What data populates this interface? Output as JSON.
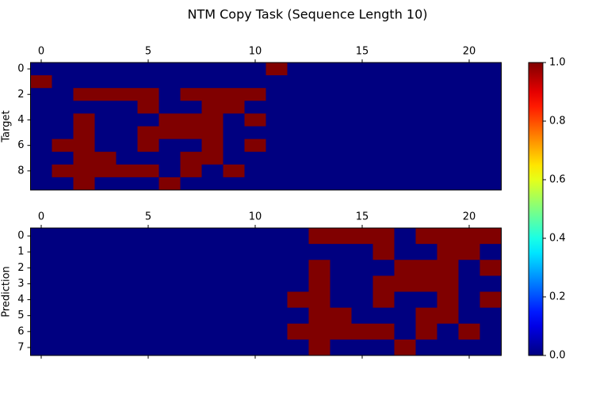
{
  "chart_data": {
    "type": "heatmap",
    "title": "NTM Copy Task (Sequence Length 10)",
    "colormap": "jet",
    "colorbar": {
      "lim": [
        0,
        1
      ],
      "ticks": [
        {
          "value": 0,
          "label": "0.0"
        },
        0.2,
        0.4,
        0.6,
        0.8,
        {
          "value": 1,
          "label": "1.0"
        }
      ]
    },
    "panels": [
      {
        "ylabel": "Target",
        "xlim": [
          -0.5,
          21.5
        ],
        "ylim": [
          9.5,
          -0.5
        ],
        "xticks": [
          0,
          5,
          10,
          15,
          20
        ],
        "yticks": [
          0,
          2,
          4,
          6,
          8
        ],
        "values": [
          [
            0,
            0,
            0,
            0,
            0,
            0,
            0,
            0,
            0,
            0,
            0,
            1,
            0,
            0,
            0,
            0,
            0,
            0,
            0,
            0,
            0,
            0
          ],
          [
            1,
            0,
            0,
            0,
            0,
            0,
            0,
            0,
            0,
            0,
            0,
            0,
            0,
            0,
            0,
            0,
            0,
            0,
            0,
            0,
            0,
            0
          ],
          [
            0,
            0,
            1,
            1,
            1,
            1,
            0,
            1,
            1,
            1,
            1,
            0,
            0,
            0,
            0,
            0,
            0,
            0,
            0,
            0,
            0,
            0
          ],
          [
            0,
            0,
            0,
            0,
            0,
            1,
            0,
            0,
            1,
            1,
            0,
            0,
            0,
            0,
            0,
            0,
            0,
            0,
            0,
            0,
            0,
            0
          ],
          [
            0,
            0,
            1,
            0,
            0,
            0,
            1,
            1,
            1,
            0,
            1,
            0,
            0,
            0,
            0,
            0,
            0,
            0,
            0,
            0,
            0,
            0
          ],
          [
            0,
            0,
            1,
            0,
            0,
            1,
            1,
            1,
            1,
            0,
            0,
            0,
            0,
            0,
            0,
            0,
            0,
            0,
            0,
            0,
            0,
            0
          ],
          [
            0,
            1,
            1,
            0,
            0,
            1,
            0,
            0,
            1,
            0,
            1,
            0,
            0,
            0,
            0,
            0,
            0,
            0,
            0,
            0,
            0,
            0
          ],
          [
            0,
            0,
            1,
            1,
            0,
            0,
            0,
            1,
            1,
            0,
            0,
            0,
            0,
            0,
            0,
            0,
            0,
            0,
            0,
            0,
            0,
            0
          ],
          [
            0,
            1,
            1,
            1,
            1,
            1,
            0,
            1,
            0,
            1,
            0,
            0,
            0,
            0,
            0,
            0,
            0,
            0,
            0,
            0,
            0,
            0
          ],
          [
            0,
            0,
            1,
            0,
            0,
            0,
            1,
            0,
            0,
            0,
            0,
            0,
            0,
            0,
            0,
            0,
            0,
            0,
            0,
            0,
            0,
            0
          ]
        ]
      },
      {
        "ylabel": "Prediction",
        "xlim": [
          -0.5,
          21.5
        ],
        "ylim": [
          7.5,
          -0.5
        ],
        "xticks": [
          0,
          5,
          10,
          15,
          20
        ],
        "yticks": [
          0,
          1,
          2,
          3,
          4,
          5,
          6,
          7
        ],
        "values": [
          [
            0,
            0,
            0,
            0,
            0,
            0,
            0,
            0,
            0,
            0,
            0,
            0,
            0,
            1,
            1,
            1,
            1,
            0,
            1,
            1,
            1,
            1
          ],
          [
            0,
            0,
            0,
            0,
            0,
            0,
            0,
            0,
            0,
            0,
            0,
            0,
            0,
            0,
            0,
            0,
            1,
            0,
            0,
            1,
            1,
            0
          ],
          [
            0,
            0,
            0,
            0,
            0,
            0,
            0,
            0,
            0,
            0,
            0,
            0,
            0,
            1,
            0,
            0,
            0,
            1,
            1,
            1,
            0,
            1
          ],
          [
            0,
            0,
            0,
            0,
            0,
            0,
            0,
            0,
            0,
            0,
            0,
            0,
            0,
            1,
            0,
            0,
            1,
            1,
            1,
            1,
            0,
            0
          ],
          [
            0,
            0,
            0,
            0,
            0,
            0,
            0,
            0,
            0,
            0,
            0,
            0,
            1,
            1,
            0,
            0,
            1,
            0,
            0,
            1,
            0,
            1
          ],
          [
            0,
            0,
            0,
            0,
            0,
            0,
            0,
            0,
            0,
            0,
            0,
            0,
            0,
            1,
            1,
            0,
            0,
            0,
            1,
            1,
            0,
            0
          ],
          [
            0,
            0,
            0,
            0,
            0,
            0,
            0,
            0,
            0,
            0,
            0,
            0,
            1,
            1,
            1,
            1,
            1,
            0,
            1,
            0,
            1,
            0
          ],
          [
            0,
            0,
            0,
            0,
            0,
            0,
            0,
            0,
            0,
            0,
            0,
            0,
            0,
            1,
            0,
            0,
            0,
            1,
            0,
            0,
            0,
            0
          ]
        ]
      }
    ]
  }
}
